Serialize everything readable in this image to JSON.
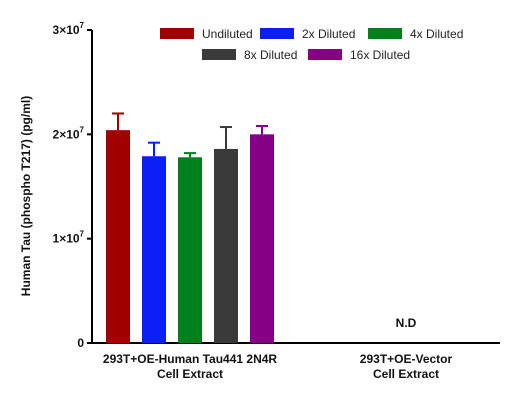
{
  "chart_data": {
    "type": "bar",
    "ylabel": "Human Tau (phospho T217) (pg/ml)",
    "ylim": [
      0,
      30000000
    ],
    "yticks": [
      {
        "mantissa": "0",
        "exponent": ""
      },
      {
        "mantissa": "1×10",
        "exponent": "7"
      },
      {
        "mantissa": "2×10",
        "exponent": "7"
      },
      {
        "mantissa": "3×10",
        "exponent": "7"
      }
    ],
    "categories": [
      {
        "line1": "293T+OE-Human Tau441 2N4R",
        "line2": "Cell Extract"
      },
      {
        "line1": "293T+OE-Vector",
        "line2": "Cell Extract"
      }
    ],
    "series": [
      {
        "name": "Undiluted",
        "color": "#a00000",
        "values": [
          20400000,
          null
        ],
        "errors": [
          1600000,
          null
        ]
      },
      {
        "name": "2x Diluted",
        "color": "#0a1ef5",
        "values": [
          17900000,
          null
        ],
        "errors": [
          1300000,
          null
        ]
      },
      {
        "name": "4x Diluted",
        "color": "#00801a",
        "values": [
          17800000,
          null
        ],
        "errors": [
          400000,
          null
        ]
      },
      {
        "name": "8x Diluted",
        "color": "#3a3a3a",
        "values": [
          18600000,
          null
        ],
        "errors": [
          2100000,
          null
        ]
      },
      {
        "name": "16x Diluted",
        "color": "#850085",
        "values": [
          20000000,
          null
        ],
        "errors": [
          800000,
          null
        ]
      }
    ],
    "annotations": [
      {
        "category_index": 1,
        "text": "N.D"
      }
    ],
    "legend_position": "top"
  }
}
